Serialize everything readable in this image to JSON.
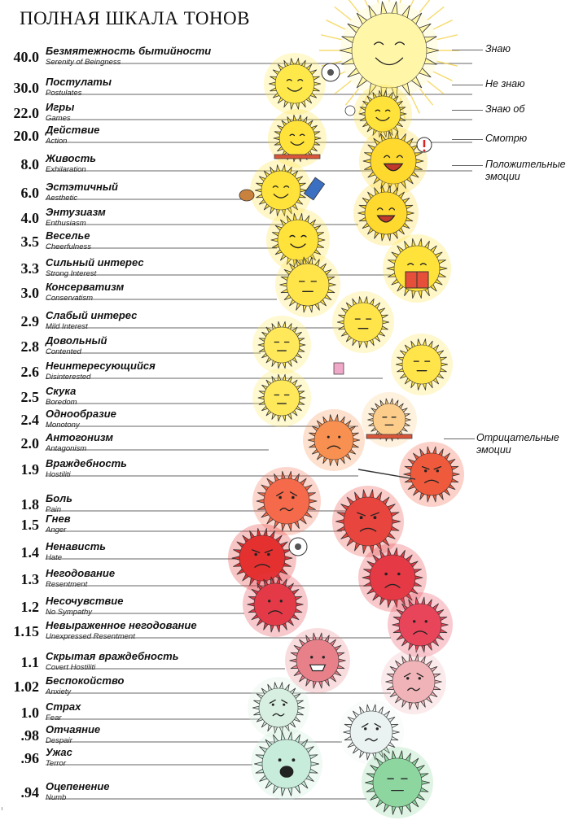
{
  "title": "ПОЛНАЯ ШКАЛА ТОНОВ",
  "levels": [
    {
      "value": "40.0",
      "ru": "Безмятежность бытийности",
      "en": "Serenity of Beingness",
      "color": "#fff6a8",
      "mood": "serene",
      "extra": "rays"
    },
    {
      "value": "30.0",
      "ru": "Постулаты",
      "en": "Postulates",
      "color": "#ffe94a",
      "mood": "smile",
      "extra": "bubble"
    },
    {
      "value": "22.0",
      "ru": "Игры",
      "en": "Games",
      "color": "#ffe23a",
      "mood": "smile",
      "extra": "ball"
    },
    {
      "value": "20.0",
      "ru": "Действие",
      "en": "Action",
      "color": "#ffe23a",
      "mood": "happy",
      "extra": "board"
    },
    {
      "value": "8.0",
      "ru": "Живость",
      "en": "Exhilaration",
      "color": "#ffd92e",
      "mood": "laugh",
      "extra": "exclaim"
    },
    {
      "value": "6.0",
      "ru": "Эстэтичный",
      "en": "Aesthetic",
      "color": "#ffe23a",
      "mood": "smile",
      "extra": "palette"
    },
    {
      "value": "4.0",
      "ru": "Энтузиазм",
      "en": "Enthusiasm",
      "color": "#ffd92e",
      "mood": "laugh",
      "extra": "none"
    },
    {
      "value": "3.5",
      "ru": "Веселье",
      "en": "Cheerfulness",
      "color": "#ffe23a",
      "mood": "smile",
      "extra": "none"
    },
    {
      "value": "3.3",
      "ru": "Сильный интерес",
      "en": "Strong Interest",
      "color": "#ffe23a",
      "mood": "smile",
      "extra": "book"
    },
    {
      "value": "3.0",
      "ru": "Консерватизм",
      "en": "Conservatism",
      "color": "#ffe44a",
      "mood": "neutral",
      "extra": "none"
    },
    {
      "value": "2.9",
      "ru": "Слабый интерес",
      "en": "Mild Interest",
      "color": "#ffe44a",
      "mood": "neutral",
      "extra": "none"
    },
    {
      "value": "2.8",
      "ru": "Довольный",
      "en": "Contented",
      "color": "#ffe85a",
      "mood": "neutral",
      "extra": "none"
    },
    {
      "value": "2.6",
      "ru": "Неинтересующийся",
      "en": "Disinterested",
      "color": "#ffe44a",
      "mood": "neutral",
      "extra": "card"
    },
    {
      "value": "2.5",
      "ru": "Скука",
      "en": "Boredom",
      "color": "#ffe85a",
      "mood": "bored",
      "extra": "none"
    },
    {
      "value": "2.4",
      "ru": "Однообразие",
      "en": "Monotony",
      "color": "#fccc8a",
      "mood": "bored",
      "extra": "board"
    },
    {
      "value": "2.0",
      "ru": "Антогонизм",
      "en": "Antagonism",
      "color": "#f79050",
      "mood": "frown",
      "extra": "none"
    },
    {
      "value": "1.9",
      "ru": "Враждебность",
      "en": "Hostiliti",
      "color": "#ef5a3c",
      "mood": "angry",
      "extra": "spear"
    },
    {
      "value": "1.8",
      "ru": "Боль",
      "en": "Pain",
      "color": "#f46a4a",
      "mood": "pain",
      "extra": "none"
    },
    {
      "value": "1.5",
      "ru": "Гнев",
      "en": "Anger",
      "color": "#e8453e",
      "mood": "angry",
      "extra": "none"
    },
    {
      "value": "1.4",
      "ru": "Ненависть",
      "en": "Hate",
      "color": "#e53030",
      "mood": "angry",
      "extra": "bubble"
    },
    {
      "value": "1.3",
      "ru": "Негодование",
      "en": "Resentment",
      "color": "#e53a45",
      "mood": "frown",
      "extra": "none"
    },
    {
      "value": "1.2",
      "ru": "Несочувствие",
      "en": "No Sympathy",
      "color": "#e43a48",
      "mood": "frown",
      "extra": "none"
    },
    {
      "value": "1.15",
      "ru": "Невыраженное негодование",
      "en": "Unexpressed Resentment",
      "color": "#e8455a",
      "mood": "frown",
      "extra": "none"
    },
    {
      "value": "1.1",
      "ru": "Скрытая враждебность",
      "en": "Covert Hostiliti",
      "color": "#e8808a",
      "mood": "grin",
      "extra": "none"
    },
    {
      "value": "1.02",
      "ru": "Беспокойство",
      "en": "Anxiety",
      "color": "#f0b4b8",
      "mood": "worry",
      "extra": "none"
    },
    {
      "value": "1.0",
      "ru": "Страх",
      "en": "Fear",
      "color": "#d7efe0",
      "mood": "worry",
      "extra": "none"
    },
    {
      "value": ".98",
      "ru": "Отчаяние",
      "en": "Despair",
      "color": "#eaf3f2",
      "mood": "worry",
      "extra": "none"
    },
    {
      "value": ".96",
      "ru": "Ужас",
      "en": "Terror",
      "color": "#c8ecdc",
      "mood": "scream",
      "extra": "none"
    },
    {
      "value": ".94",
      "ru": "Оцепенение",
      "en": "Numb",
      "color": "#8ed6a0",
      "mood": "blank",
      "extra": "none"
    }
  ],
  "side_labels": [
    {
      "text": "Знаю"
    },
    {
      "text": "Не знаю"
    },
    {
      "text": "Знаю об"
    },
    {
      "text": "Смотрю"
    },
    {
      "text": "Положительные эмоции"
    },
    {
      "text": "Отрицательные эмоции"
    }
  ],
  "colors": {
    "text": "#111111",
    "line": "#333333"
  }
}
